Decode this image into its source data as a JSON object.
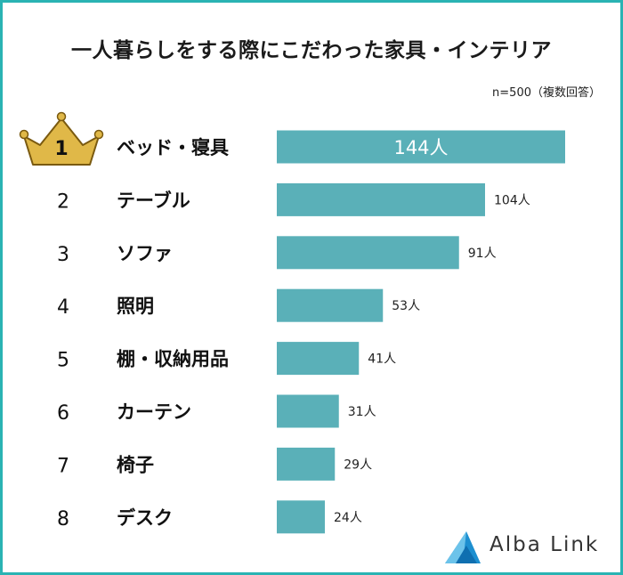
{
  "title": "一人暮らしをする際にこだわった家具・インテリア",
  "note": "n=500（複数回答）",
  "colors": {
    "bar": "#5ab0b8",
    "frame": "#2ab3b3",
    "crown": "#e0b848",
    "crown_stroke": "#7a5a10"
  },
  "chart_data": {
    "type": "bar",
    "orientation": "horizontal",
    "title": "一人暮らしをする際にこだわった家具・インテリア",
    "ranks": [
      "1",
      "2",
      "3",
      "4",
      "5",
      "6",
      "7",
      "8"
    ],
    "categories": [
      "ベッド・寝具",
      "テーブル",
      "ソファ",
      "照明",
      "棚・収納用品",
      "カーテン",
      "椅子",
      "デスク"
    ],
    "values": [
      144,
      104,
      91,
      53,
      41,
      31,
      29,
      24
    ],
    "value_labels": [
      "144人",
      "104人",
      "91人",
      "53人",
      "41人",
      "31人",
      "29人",
      "24人"
    ],
    "xlim": [
      0,
      144
    ],
    "grid": false,
    "legend": "none"
  },
  "logo": {
    "text": "Alba Link",
    "icon": "alba-link-logo-icon"
  }
}
